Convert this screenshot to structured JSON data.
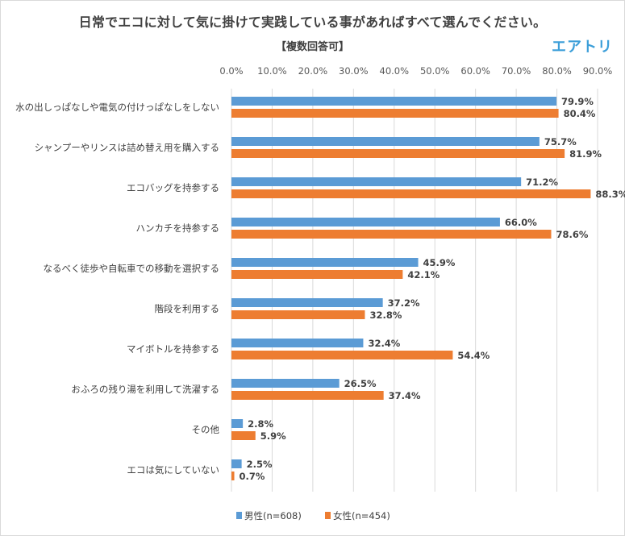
{
  "chart_data": {
    "type": "bar",
    "orientation": "horizontal",
    "title": "日常でエコに対して気に掛けて実践している事があればすべて選んでください。",
    "subtitle": "【複数回答可】",
    "brand": "エアトリ",
    "xlabel": "",
    "ylabel": "",
    "xlim": [
      0,
      90
    ],
    "ticks": [
      "0.0%",
      "10.0%",
      "20.0%",
      "30.0%",
      "40.0%",
      "50.0%",
      "60.0%",
      "70.0%",
      "80.0%",
      "90.0%"
    ],
    "grid": true,
    "legend_position": "bottom",
    "categories": [
      "水の出しっぱなしや電気の付けっぱなしをしない",
      "シャンプーやリンスは詰め替え用を購入する",
      "エコバッグを持参する",
      "ハンカチを持参する",
      "なるべく徒歩や自転車での移動を選択する",
      "階段を利用する",
      "マイボトルを持参する",
      "おふろの残り湯を利用して洗濯する",
      "その他",
      "エコは気にしていない"
    ],
    "series": [
      {
        "name": "男性(n=608)",
        "color": "#5b9bd5",
        "values": [
          79.9,
          75.7,
          71.2,
          66.0,
          45.9,
          37.2,
          32.4,
          26.5,
          2.8,
          2.5
        ],
        "labels": [
          "79.9%",
          "75.7%",
          "71.2%",
          "66.0%",
          "45.9%",
          "37.2%",
          "32.4%",
          "26.5%",
          "2.8%",
          "2.5%"
        ]
      },
      {
        "name": "女性(n=454)",
        "color": "#ed7d31",
        "values": [
          80.4,
          81.9,
          88.3,
          78.6,
          42.1,
          32.8,
          54.4,
          37.4,
          5.9,
          0.7
        ],
        "labels": [
          "80.4%",
          "81.9%",
          "88.3%",
          "78.6%",
          "42.1%",
          "32.8%",
          "54.4%",
          "37.4%",
          "5.9%",
          "0.7%"
        ]
      }
    ]
  }
}
